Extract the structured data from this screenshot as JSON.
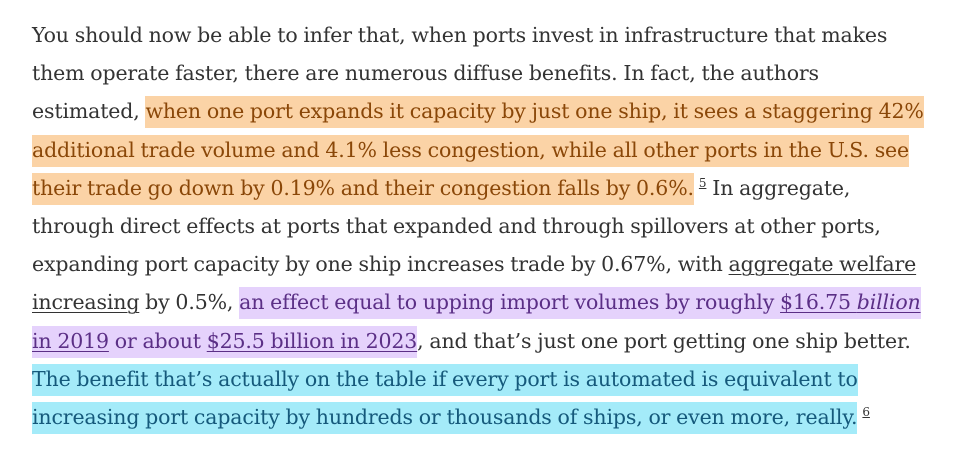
{
  "paragraph": {
    "intro": "You should now be able to infer that, when ports invest in infrastructure that makes them operate faster, there are numerous diffuse benefits. In fact, the authors estimated, ",
    "highlight_orange": "when one port expands it capacity by just one ship, it sees a staggering 42% additional trade volume and 4.1% less congestion, while all other ports in the U.S. see their trade go down by 0.19% and their congestion falls by 0.6%.",
    "footnote_5": "5",
    "middle": " In aggregate, through direct effects at ports that expanded and through spillovers at other ports, expanding port capacity by one ship increases trade by 0.67%, with ",
    "link_welfare": "aggregate welfare increasing",
    "after_welfare": " by 0.5%, ",
    "purple_lead": "an effect equal to upping import volumes by roughly ",
    "link_1675_amount": "$16.75 ",
    "link_1675_billion": "billion",
    "link_1675_year": " in 2019",
    "purple_or_about": " or about ",
    "link_255": "$25.5 billion in 2023",
    "after_purple": ", and that’s just one port getting one ship better. ",
    "highlight_cyan": "The benefit that’s actually on the table if every port is automated is equivalent to increasing port capacity by hundreds or thousands of ships, or even more, really.",
    "footnote_6": "6"
  },
  "colors": {
    "orange_highlight": "#fbd3a6",
    "purple_highlight": "#e5d2fc",
    "cyan_highlight": "#a4ebf9"
  }
}
